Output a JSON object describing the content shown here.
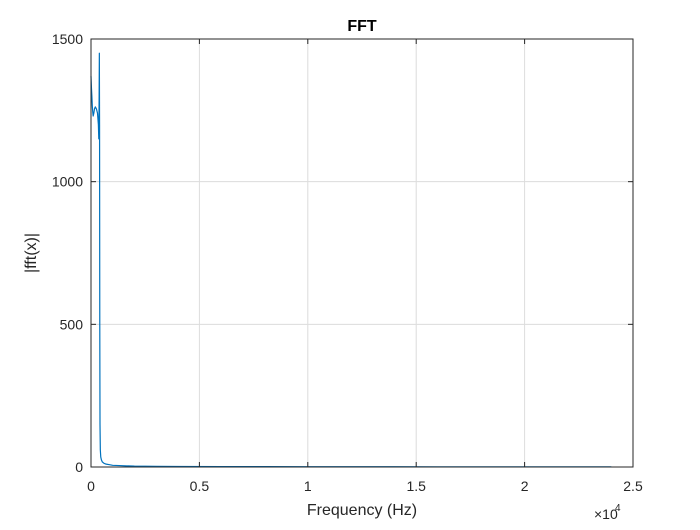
{
  "chart_data": {
    "type": "line",
    "title": "FFT",
    "xlabel": "Frequency (Hz)",
    "ylabel": "|fft(x)|",
    "xlim": [
      0,
      25000
    ],
    "ylim": [
      0,
      1500
    ],
    "x_ticks": [
      0,
      5000,
      10000,
      15000,
      20000,
      25000
    ],
    "x_tick_labels": [
      "0",
      "0.5",
      "1",
      "1.5",
      "2",
      "2.5"
    ],
    "x_exponent_base": "×10",
    "x_exponent_power": "4",
    "y_ticks": [
      0,
      500,
      1000,
      1500
    ],
    "y_tick_labels": [
      "0",
      "500",
      "1000",
      "1500"
    ],
    "grid": true,
    "series_color": "#0072BD",
    "series": [
      {
        "x": [
          0,
          20,
          40,
          60,
          80,
          100,
          130,
          160,
          200,
          250,
          300,
          340,
          360,
          375,
          385,
          395,
          405,
          415,
          430,
          450,
          480,
          520,
          600,
          700,
          850,
          1000,
          1300,
          1600,
          2000,
          3000,
          4000,
          6000,
          8000,
          10000,
          12000,
          14000,
          16000,
          18000,
          20000,
          22000,
          24000
        ],
        "y": [
          1370,
          1330,
          1300,
          1265,
          1245,
          1230,
          1240,
          1255,
          1262,
          1255,
          1240,
          1200,
          1150,
          1300,
          1450,
          1200,
          500,
          150,
          60,
          35,
          25,
          18,
          13,
          10,
          8,
          6,
          5,
          4,
          3,
          2.5,
          2,
          1.5,
          1.2,
          1,
          0.9,
          0.8,
          0.7,
          0.6,
          0.5,
          0.5,
          0.4
        ]
      }
    ]
  }
}
